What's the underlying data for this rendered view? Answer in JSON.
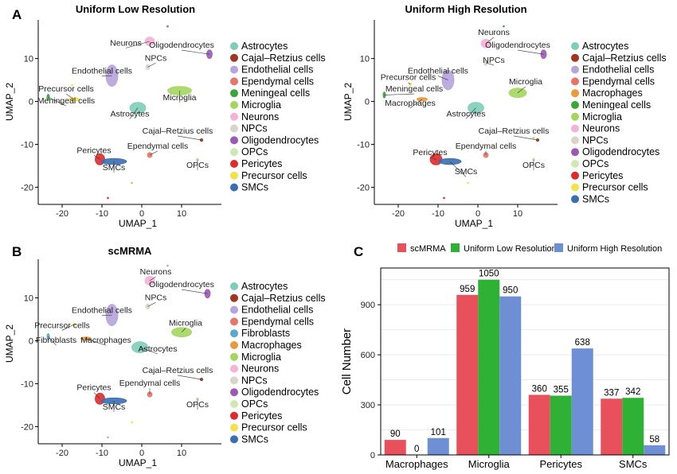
{
  "colors": {
    "Astrocytes": "#7ecdb9",
    "Cajal–Retzius cells": "#a0361f",
    "Endothelial cells": "#b6a4dc",
    "Ependymal cells": "#e8756a",
    "Fibroblasts": "#5ba7d0",
    "Macrophages": "#e99a3a",
    "Meningeal cells": "#3aa63a",
    "Microglia": "#a4d65e",
    "Neurons": "#f4b3d6",
    "NPCs": "#d9d3ca",
    "Oligodendrocytes": "#9b59b6",
    "OPCs": "#cfe8b3",
    "Pericytes": "#dd2b2b",
    "Precursor cells": "#f2e14c",
    "SMCs": "#3a6eb0"
  },
  "chart_data": [
    {
      "panel": "A",
      "type": "scatter",
      "title": "Uniform Low Resolution",
      "xlabel": "UMAP_1",
      "ylabel": "UMAP_2",
      "xlim": [
        -26,
        20
      ],
      "ylim": [
        -24,
        19
      ],
      "xticks": [
        -20,
        -10,
        0,
        10
      ],
      "yticks": [
        -20,
        -10,
        0,
        10
      ],
      "legend": [
        "Astrocytes",
        "Cajal–Retzius cells",
        "Endothelial cells",
        "Ependymal cells",
        "Meningeal cells",
        "Microglia",
        "Neurons",
        "NPCs",
        "Oligodendrocytes",
        "OPCs",
        "Pericytes",
        "Precursor cells",
        "SMCs"
      ],
      "clusters": [
        {
          "cell": "Astrocytes",
          "x": -1,
          "y": -1.5,
          "rx": 2,
          "ry": 1.3,
          "label": "Astrocytes",
          "lx": -3,
          "ly": -3.5
        },
        {
          "cell": "Cajal–Retzius cells",
          "x": 15,
          "y": -9,
          "rx": 0.3,
          "ry": 0.3,
          "label": "Cajal–Retzius cells",
          "lx": 9,
          "ly": -7.5
        },
        {
          "cell": "Endothelial cells",
          "x": -7.5,
          "y": 6,
          "rx": 1.5,
          "ry": 2.5,
          "label": "Endothelial cells",
          "lx": -10,
          "ly": 6.5
        },
        {
          "cell": "Ependymal cells",
          "x": 2,
          "y": -12.5,
          "rx": 0.6,
          "ry": 0.6,
          "label": "Ependymal cells",
          "lx": 4,
          "ly": -11
        },
        {
          "cell": "Meningeal cells",
          "x": -23.5,
          "y": 1,
          "rx": 0.3,
          "ry": 0.7,
          "label": "Meningeal cells",
          "lx": -19,
          "ly": -0.5
        },
        {
          "cell": "Microglia",
          "x": 9.5,
          "y": 2.5,
          "rx": 3,
          "ry": 1,
          "label": "Microglia",
          "lx": 9.5,
          "ly": 0.3
        },
        {
          "cell": "Neurons",
          "x": 2,
          "y": 14,
          "rx": 1.2,
          "ry": 1,
          "label": "Neurons",
          "lx": -4,
          "ly": 13
        },
        {
          "cell": "NPCs",
          "x": 1.5,
          "y": 8,
          "rx": 0.5,
          "ry": 0.6,
          "label": "NPCs",
          "lx": 3.5,
          "ly": 9.5
        },
        {
          "cell": "Oligodendrocytes",
          "x": 17,
          "y": 11,
          "rx": 0.7,
          "ry": 1,
          "label": "Oligodendrocytes",
          "lx": 10,
          "ly": 12.5
        },
        {
          "cell": "OPCs",
          "x": 14,
          "y": -13.5,
          "rx": 0.3,
          "ry": 0.3,
          "label": "OPCs",
          "lx": 14,
          "ly": -15.5
        },
        {
          "cell": "Pericytes",
          "x": -10.5,
          "y": -13.5,
          "rx": 1.2,
          "ry": 1.3,
          "label": "Pericytes",
          "lx": -12,
          "ly": -12
        },
        {
          "cell": "Precursor cells",
          "x": -17,
          "y": 0.5,
          "rx": 1.3,
          "ry": 0.4,
          "label": "Precursor cells",
          "lx": -19,
          "ly": 2.3
        },
        {
          "cell": "SMCs",
          "x": -7,
          "y": -14,
          "rx": 3.2,
          "ry": 0.7,
          "label": "SMCs",
          "lx": -7,
          "ly": -16
        }
      ],
      "outliers": [
        {
          "cell": "Meningeal cells",
          "x": 6.5,
          "y": 17.5
        },
        {
          "cell": "Precursor cells",
          "x": -17.5,
          "y": 3.8
        },
        {
          "cell": "Pericytes",
          "x": -8.5,
          "y": -22.5
        },
        {
          "cell": "Microglia",
          "x": -2.5,
          "y": -19
        }
      ]
    },
    {
      "panel": "A",
      "type": "scatter",
      "title": "Uniform High Resolution",
      "xlabel": "UMAP_1",
      "ylabel": "UMAP_2",
      "xlim": [
        -26,
        20
      ],
      "ylim": [
        -24,
        19
      ],
      "xticks": [
        -20,
        -10,
        0,
        10
      ],
      "yticks": [
        -20,
        -10,
        0,
        10
      ],
      "legend": [
        "Astrocytes",
        "Cajal–Retzius cells",
        "Endothelial cells",
        "Ependymal cells",
        "Macrophages",
        "Meningeal cells",
        "Microglia",
        "Neurons",
        "NPCs",
        "Oligodendrocytes",
        "OPCs",
        "Pericytes",
        "Precursor cells",
        "SMCs"
      ],
      "clusters": [
        {
          "cell": "Astrocytes",
          "x": -0.5,
          "y": -1.5,
          "rx": 2,
          "ry": 1.3,
          "label": "Astrocytes",
          "lx": -3,
          "ly": -3.5
        },
        {
          "cell": "Cajal–Retzius cells",
          "x": 15,
          "y": -9,
          "rx": 0.3,
          "ry": 0.3,
          "label": "Cajal–Retzius cells",
          "lx": 9,
          "ly": -7.5
        },
        {
          "cell": "Endothelial cells",
          "x": -7.5,
          "y": 5,
          "rx": 1.5,
          "ry": 2.3,
          "label": "Endothelial cells",
          "lx": -10,
          "ly": 6.5
        },
        {
          "cell": "Ependymal cells",
          "x": 2,
          "y": -12.5,
          "rx": 0.6,
          "ry": 0.6,
          "label": "Ependymal cells",
          "lx": 2,
          "ly": -11
        },
        {
          "cell": "Macrophages",
          "x": -14,
          "y": 0.5,
          "rx": 1.3,
          "ry": 0.4,
          "label": "Macrophages",
          "lx": -17,
          "ly": -1
        },
        {
          "cell": "Meningeal cells",
          "x": -23.5,
          "y": 1.5,
          "rx": 0.3,
          "ry": 0.7,
          "label": "Meningeal cells",
          "lx": -16,
          "ly": 2.3
        },
        {
          "cell": "Microglia",
          "x": 10,
          "y": 2,
          "rx": 2.2,
          "ry": 1.1,
          "label": "Microglia",
          "lx": 12,
          "ly": 4
        },
        {
          "cell": "Neurons",
          "x": 2,
          "y": 13.5,
          "rx": 1.2,
          "ry": 1,
          "label": "Neurons",
          "lx": 4,
          "ly": 15.5
        },
        {
          "cell": "NPCs",
          "x": 2,
          "y": 9,
          "rx": 0.5,
          "ry": 0.6,
          "label": "NPCs",
          "lx": 4,
          "ly": 9
        },
        {
          "cell": "Oligodendrocytes",
          "x": 16.5,
          "y": 11,
          "rx": 0.7,
          "ry": 1,
          "label": "Oligodendrocytes",
          "lx": 10,
          "ly": 12.5
        },
        {
          "cell": "OPCs",
          "x": 14,
          "y": -13.5,
          "rx": 0.3,
          "ry": 0.3,
          "label": "OPCs",
          "lx": 14,
          "ly": -15.5
        },
        {
          "cell": "Pericytes",
          "x": -10.5,
          "y": -13.5,
          "rx": 1.5,
          "ry": 1.3,
          "label": "Pericytes",
          "lx": -12,
          "ly": -12.5
        },
        {
          "cell": "Precursor cells",
          "x": -17,
          "y": 4,
          "rx": 0.3,
          "ry": 0.3,
          "label": "Precursor cells",
          "lx": -17.5,
          "ly": 5
        },
        {
          "cell": "SMCs",
          "x": -7,
          "y": -14,
          "rx": 2.8,
          "ry": 0.7,
          "label": "SMCs",
          "lx": -3,
          "ly": -17
        }
      ],
      "outliers": [
        {
          "cell": "Meningeal cells",
          "x": 6.5,
          "y": 17.5
        },
        {
          "cell": "Pericytes",
          "x": -8.5,
          "y": -22.5
        },
        {
          "cell": "Precursor cells",
          "x": -2.5,
          "y": -19
        },
        {
          "cell": "Microglia",
          "x": 14,
          "y": -8.5
        }
      ]
    },
    {
      "panel": "B",
      "type": "scatter",
      "title": "scMRMA",
      "xlabel": "UMAP_1",
      "ylabel": "UMAP_2",
      "xlim": [
        -26,
        20
      ],
      "ylim": [
        -24,
        19
      ],
      "xticks": [
        -20,
        -10,
        0,
        10
      ],
      "yticks": [
        -20,
        -10,
        0,
        10
      ],
      "legend": [
        "Astrocytes",
        "Cajal–Retzius cells",
        "Endothelial cells",
        "Ependymal cells",
        "Fibroblasts",
        "Macrophages",
        "Microglia",
        "Neurons",
        "NPCs",
        "Oligodendrocytes",
        "OPCs",
        "Pericytes",
        "Precursor cells",
        "SMCs"
      ],
      "clusters": [
        {
          "cell": "Astrocytes",
          "x": -0.5,
          "y": -1.5,
          "rx": 2,
          "ry": 1.3,
          "label": "Astrocytes",
          "lx": 4,
          "ly": -2.5
        },
        {
          "cell": "Cajal–Retzius cells",
          "x": 15,
          "y": -9,
          "rx": 0.3,
          "ry": 0.3,
          "label": "Cajal–Retzius cells",
          "lx": 9,
          "ly": -7.5
        },
        {
          "cell": "Endothelial cells",
          "x": -7.5,
          "y": 6,
          "rx": 1.5,
          "ry": 2.5,
          "label": "Endothelial cells",
          "lx": -10,
          "ly": 6.5
        },
        {
          "cell": "Ependymal cells",
          "x": 2,
          "y": -12.5,
          "rx": 0.6,
          "ry": 0.6,
          "label": "Ependymal cells",
          "lx": 2,
          "ly": -10.5
        },
        {
          "cell": "Fibroblasts",
          "x": -23.5,
          "y": 1,
          "rx": 0.3,
          "ry": 0.7,
          "label": "Fibroblasts",
          "lx": -21.5,
          "ly": -0.5
        },
        {
          "cell": "Macrophages",
          "x": -14,
          "y": 0.5,
          "rx": 1.3,
          "ry": 0.4,
          "label": "Macrophages",
          "lx": -9,
          "ly": -0.5
        },
        {
          "cell": "Microglia",
          "x": 10,
          "y": 2,
          "rx": 2.5,
          "ry": 1.1,
          "label": "Microglia",
          "lx": 11,
          "ly": 3.5
        },
        {
          "cell": "Neurons",
          "x": 2,
          "y": 14,
          "rx": 1.2,
          "ry": 1,
          "label": "Neurons",
          "lx": 3.5,
          "ly": 15.5
        },
        {
          "cell": "NPCs",
          "x": 1.5,
          "y": 8,
          "rx": 0.5,
          "ry": 0.6,
          "label": "NPCs",
          "lx": 3.5,
          "ly": 9.5
        },
        {
          "cell": "Oligodendrocytes",
          "x": 16.5,
          "y": 11,
          "rx": 0.7,
          "ry": 1,
          "label": "Oligodendrocytes",
          "lx": 10,
          "ly": 12.5
        },
        {
          "cell": "OPCs",
          "x": 14,
          "y": -13.5,
          "rx": 0.3,
          "ry": 0.3,
          "label": "OPCs",
          "lx": 14,
          "ly": -15.5
        },
        {
          "cell": "Pericytes",
          "x": -10.5,
          "y": -13.5,
          "rx": 1.2,
          "ry": 1.3,
          "label": "Pericytes",
          "lx": -12,
          "ly": -11.5
        },
        {
          "cell": "Precursor cells",
          "x": -17,
          "y": 3.8,
          "rx": 0.3,
          "ry": 0.3,
          "label": "Precursor cells",
          "lx": -20,
          "ly": 3
        },
        {
          "cell": "SMCs",
          "x": -7,
          "y": -14,
          "rx": 3.2,
          "ry": 0.7,
          "label": "SMCs",
          "lx": -7,
          "ly": -16
        }
      ],
      "outliers": [
        {
          "cell": "Endothelial cells",
          "x": 6.5,
          "y": 17.5
        },
        {
          "cell": "Precursor cells",
          "x": -2.5,
          "y": -19
        },
        {
          "cell": "Endothelial cells",
          "x": -8.5,
          "y": -22.5
        }
      ]
    },
    {
      "panel": "C",
      "type": "bar",
      "title": "",
      "xlabel": "",
      "ylabel": "Cell Number",
      "ylim": [
        0,
        1120
      ],
      "yticks": [
        0,
        300,
        600,
        900
      ],
      "grid": true,
      "legend_position": "top",
      "categories": [
        "Macrophages",
        "Microglia",
        "Pericytes",
        "SMCs"
      ],
      "series": [
        {
          "name": "scMRMA",
          "color": "#e8505b",
          "values": [
            90,
            959,
            360,
            337
          ]
        },
        {
          "name": "Uniform Low Resolution",
          "color": "#2eb135",
          "values": [
            0,
            1050,
            355,
            342
          ]
        },
        {
          "name": "Uniform High Resolution",
          "color": "#6f8fd5",
          "values": [
            101,
            950,
            638,
            58
          ]
        }
      ]
    }
  ]
}
